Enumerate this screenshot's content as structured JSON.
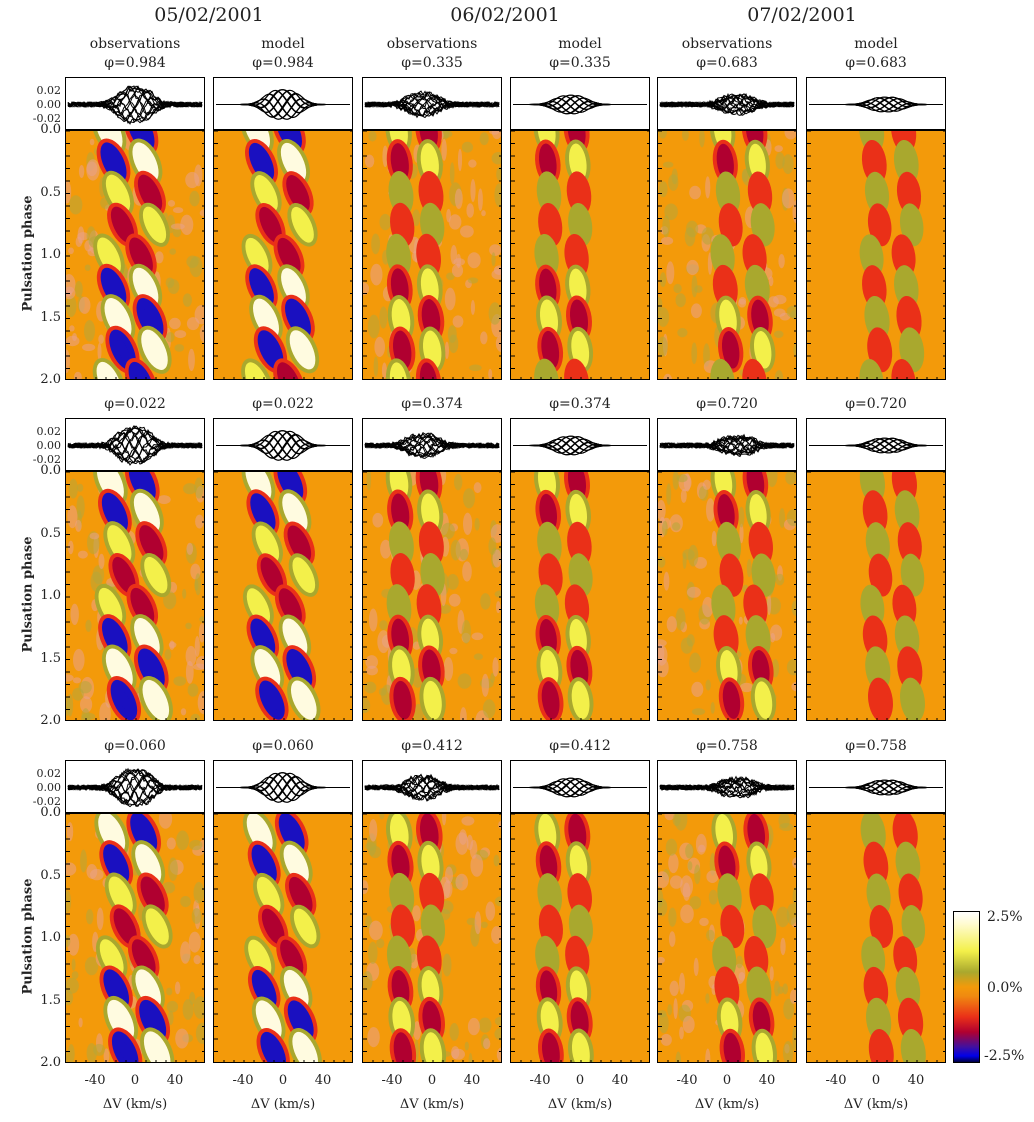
{
  "chart_data": {
    "type": "heatmap",
    "dates": [
      "05/02/2001",
      "06/02/2001",
      "07/02/2001"
    ],
    "column_kinds": [
      "observations",
      "model",
      "observations",
      "model",
      "observations",
      "model"
    ],
    "ylabel": "Pulsation phase",
    "xlabel": "ΔV (km/s)",
    "x_ticks": [
      "-40",
      "0",
      "40"
    ],
    "x_range": [
      -70,
      70
    ],
    "y_ticks": [
      "0.0",
      "0.5",
      "1.0",
      "1.5",
      "2.0"
    ],
    "y_range": [
      0.0,
      2.0
    ],
    "profile_ticks": [
      "0.02",
      "0.00",
      "-0.02"
    ],
    "phases": [
      [
        "φ=0.984",
        "φ=0.984",
        "φ=0.335",
        "φ=0.335",
        "φ=0.683",
        "φ=0.683"
      ],
      [
        "φ=0.022",
        "φ=0.022",
        "φ=0.374",
        "φ=0.374",
        "φ=0.720",
        "φ=0.720"
      ],
      [
        "φ=0.060",
        "φ=0.060",
        "φ=0.412",
        "φ=0.412",
        "φ=0.758",
        "φ=0.758"
      ]
    ],
    "colorbar": {
      "max_label": "2.5%",
      "mid_label": "0.0%",
      "min_label": "-2.5%",
      "colors": [
        "#ffffff",
        "#f3f04a",
        "#a9a82e",
        "#f39a0a",
        "#ea3018",
        "#b00030",
        "#0000e8",
        "#000040"
      ]
    },
    "background_color": "#f39a0a",
    "feature_lines": [
      {
        "date": 0,
        "x_at_0": -18,
        "slope_per_phase": 30,
        "amplitude": 1.0
      },
      {
        "date": 0,
        "x_at_0": 14,
        "slope_per_phase": 30,
        "amplitude": 1.0
      },
      {
        "date": 1,
        "x_at_0": -32,
        "slope_per_phase": 8,
        "amplitude": 0.6
      },
      {
        "date": 1,
        "x_at_0": -2,
        "slope_per_phase": 8,
        "amplitude": 0.6
      },
      {
        "date": 2,
        "x_at_0": 0,
        "slope_per_phase": 18,
        "amplitude": 0.5
      },
      {
        "date": 2,
        "x_at_0": 32,
        "slope_per_phase": 18,
        "amplitude": 0.5
      }
    ]
  }
}
